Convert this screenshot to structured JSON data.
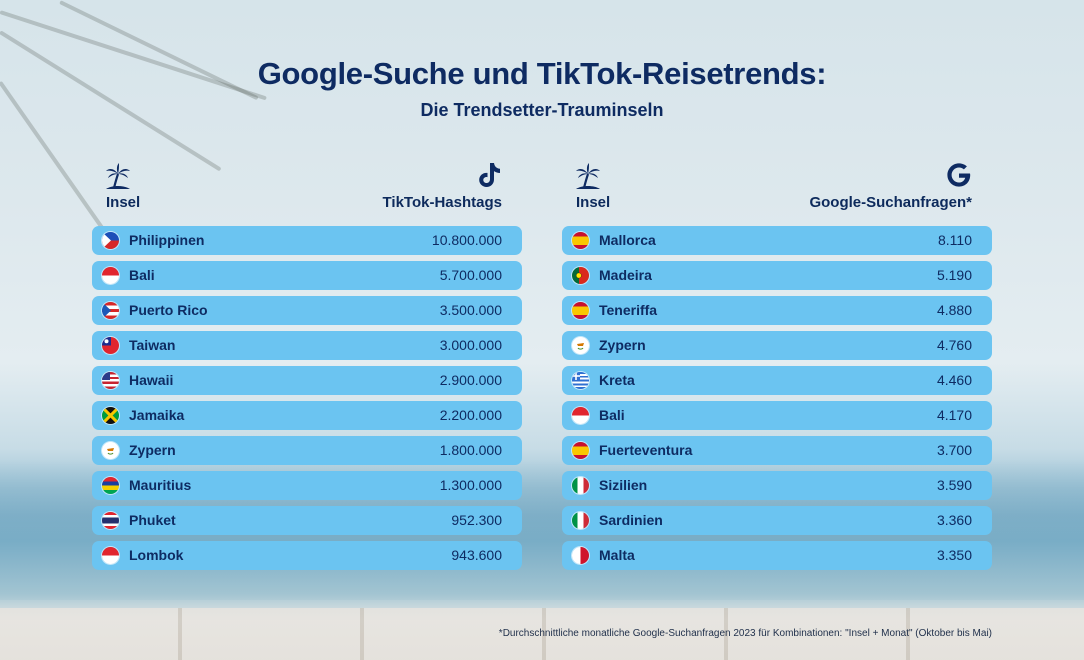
{
  "header": {
    "title": "Google-Suche und TikTok-Reisetrends:",
    "subtitle": "Die Trendsetter-Trauminseln"
  },
  "left_panel": {
    "column_label": "Insel",
    "metric_label": "TikTok-Hashtags",
    "island_icon": "palm-island-icon",
    "metric_icon": "tiktok-icon"
  },
  "right_panel": {
    "column_label": "Insel",
    "metric_label": "Google-Suchanfragen*",
    "island_icon": "palm-island-icon",
    "metric_icon": "google-icon"
  },
  "colors": {
    "row_bg": "#6bc4f1",
    "text": "#0e2b62"
  },
  "chart_data": [
    {
      "type": "table",
      "columns": [
        "Insel",
        "TikTok-Hashtags"
      ],
      "rows": [
        {
          "island": "Philippinen",
          "value": 10800000,
          "value_text": "10.800.000",
          "flag": "philippines"
        },
        {
          "island": "Bali",
          "value": 5700000,
          "value_text": "5.700.000",
          "flag": "indonesia"
        },
        {
          "island": "Puerto Rico",
          "value": 3500000,
          "value_text": "3.500.000",
          "flag": "puerto-rico"
        },
        {
          "island": "Taiwan",
          "value": 3000000,
          "value_text": "3.000.000",
          "flag": "taiwan"
        },
        {
          "island": "Hawaii",
          "value": 2900000,
          "value_text": "2.900.000",
          "flag": "usa"
        },
        {
          "island": "Jamaika",
          "value": 2200000,
          "value_text": "2.200.000",
          "flag": "jamaica"
        },
        {
          "island": "Zypern",
          "value": 1800000,
          "value_text": "1.800.000",
          "flag": "cyprus"
        },
        {
          "island": "Mauritius",
          "value": 1300000,
          "value_text": "1.300.000",
          "flag": "mauritius"
        },
        {
          "island": "Phuket",
          "value": 952300,
          "value_text": "952.300",
          "flag": "thailand"
        },
        {
          "island": "Lombok",
          "value": 943600,
          "value_text": "943.600",
          "flag": "indonesia"
        }
      ]
    },
    {
      "type": "table",
      "columns": [
        "Insel",
        "Google-Suchanfragen*"
      ],
      "rows": [
        {
          "island": "Mallorca",
          "value": 8110,
          "value_text": "8.110",
          "flag": "spain"
        },
        {
          "island": "Madeira",
          "value": 5190,
          "value_text": "5.190",
          "flag": "portugal"
        },
        {
          "island": "Teneriffa",
          "value": 4880,
          "value_text": "4.880",
          "flag": "spain"
        },
        {
          "island": "Zypern",
          "value": 4760,
          "value_text": "4.760",
          "flag": "cyprus"
        },
        {
          "island": "Kreta",
          "value": 4460,
          "value_text": "4.460",
          "flag": "greece"
        },
        {
          "island": "Bali",
          "value": 4170,
          "value_text": "4.170",
          "flag": "indonesia"
        },
        {
          "island": "Fuerteventura",
          "value": 3700,
          "value_text": "3.700",
          "flag": "spain"
        },
        {
          "island": "Sizilien",
          "value": 3590,
          "value_text": "3.590",
          "flag": "italy"
        },
        {
          "island": "Sardinien",
          "value": 3360,
          "value_text": "3.360",
          "flag": "italy"
        },
        {
          "island": "Malta",
          "value": 3350,
          "value_text": "3.350",
          "flag": "malta"
        }
      ]
    }
  ],
  "footnote": "*Durchschnittliche monatliche Google-Suchanfragen 2023 für Kombinationen: \"Insel + Monat\" (Oktober bis Mai)"
}
